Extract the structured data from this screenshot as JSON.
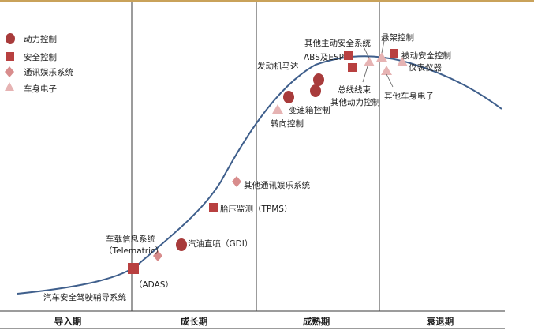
{
  "colors": {
    "top_bar": "#c9a25a",
    "curve": "#3f5f8c",
    "divider": "#3a3a3a",
    "power": "#a83b3b",
    "safety": "#b84040",
    "infotainment": "#d88c8c",
    "body": "#e6b3b3"
  },
  "legend": [
    {
      "shape": "circle",
      "label": "动力控制"
    },
    {
      "shape": "square",
      "label": "安全控制"
    },
    {
      "shape": "diamond",
      "label": "通讯娱乐系统"
    },
    {
      "shape": "triangle",
      "label": "车身电子"
    }
  ],
  "phases": [
    "导入期",
    "成长期",
    "成熟期",
    "衰退期"
  ],
  "labels": {
    "adas_system": "汽车安全驾驶辅导系统",
    "adas": "（ADAS）",
    "telematics_1": "车载信息系统",
    "telematics_2": "（Telematric）",
    "gdi": "汽油直喷（GDI）",
    "tpms": "胎压监测（TPMS）",
    "other_infotainment": "其他通讯娱乐系统",
    "steering": "转向控制",
    "transmission": "变速箱控制",
    "engine_motor": "发动机马达",
    "abs_esp": "ABS及ESP",
    "other_active_safety": "其他主动安全系统",
    "bus_harness": "总线线束",
    "other_power": "其他动力控制",
    "suspension": "悬架控制",
    "passive_safety": "被动安全控制",
    "instruments": "仪表仪器",
    "other_body": "其他车身电子"
  }
}
